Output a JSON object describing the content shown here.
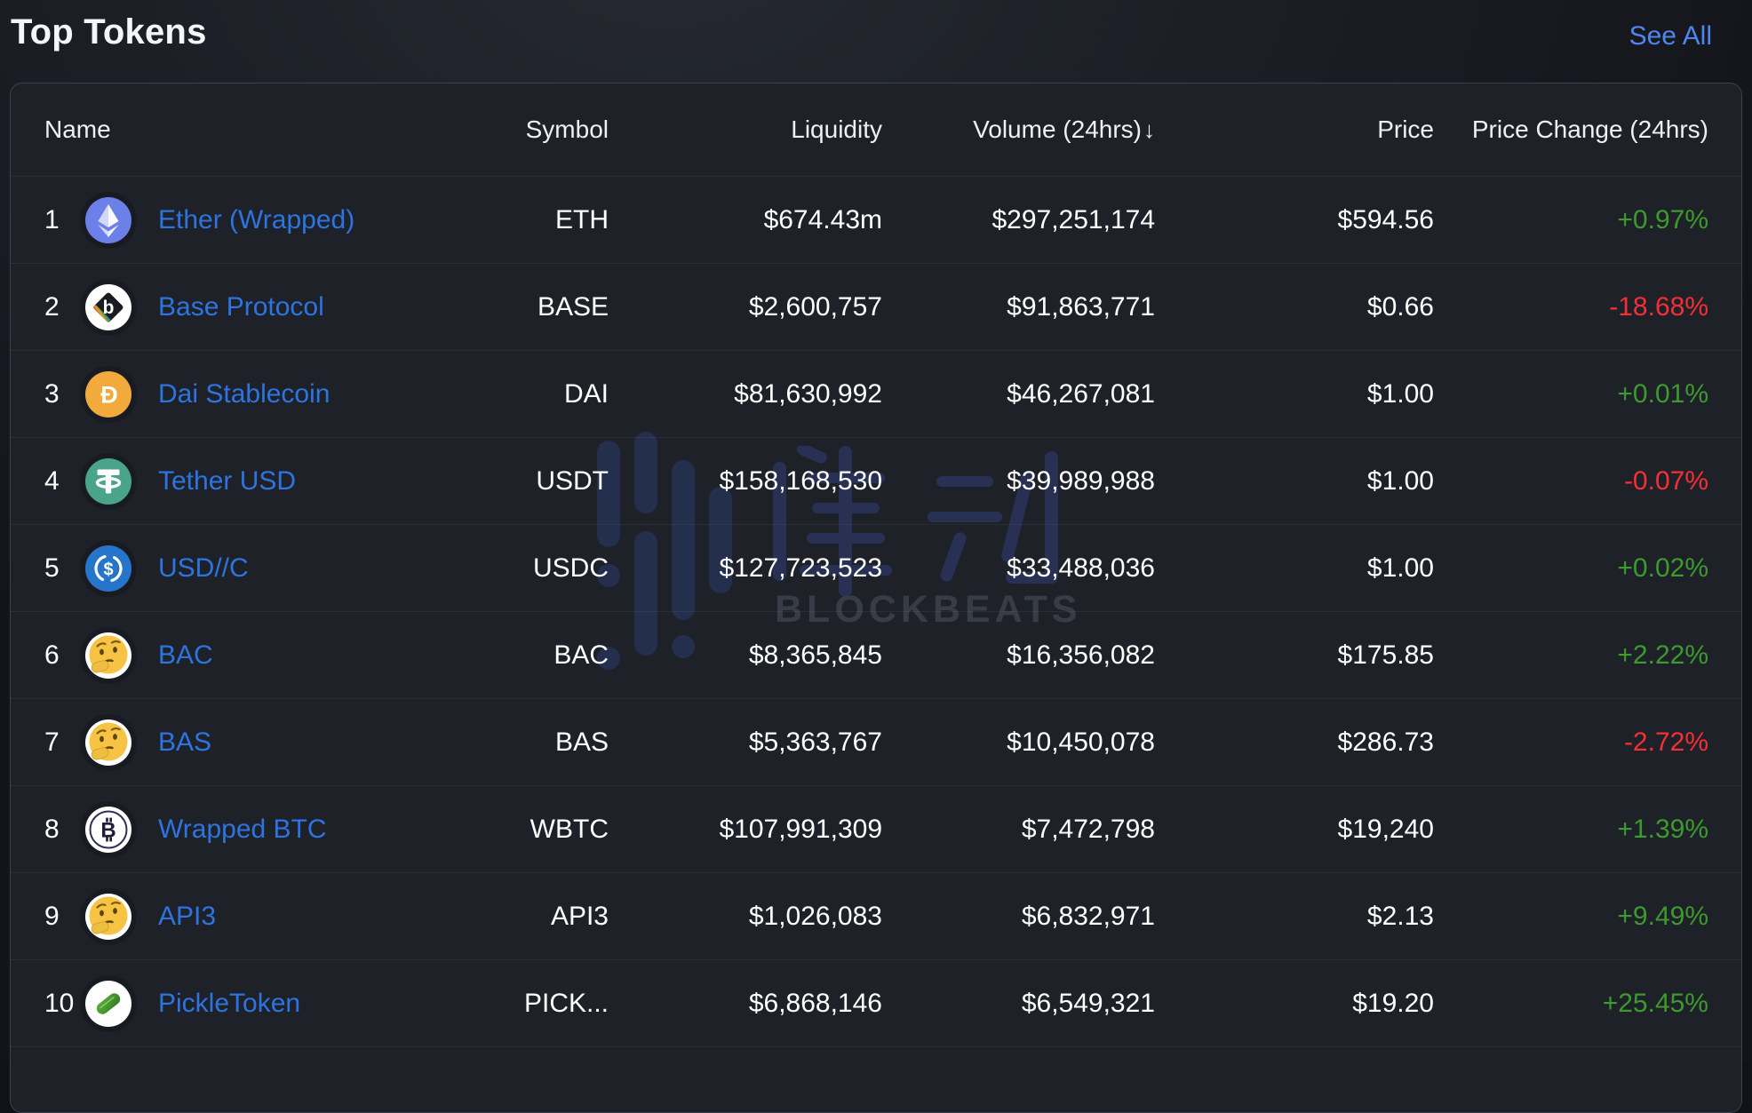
{
  "page": {
    "title": "Top Tokens",
    "see_all": "See All"
  },
  "table": {
    "columns": {
      "name": "Name",
      "symbol": "Symbol",
      "liquidity": "Liquidity",
      "volume": "Volume (24hrs)",
      "volume_sort_icon": "↓",
      "price": "Price",
      "price_change": "Price Change (24hrs)"
    },
    "rows": [
      {
        "rank": "1",
        "icon": "eth",
        "name": "Ether (Wrapped)",
        "symbol": "ETH",
        "liquidity": "$674.43m",
        "volume": "$297,251,174",
        "price": "$594.56",
        "change": "+0.97%"
      },
      {
        "rank": "2",
        "icon": "base",
        "name": "Base Protocol",
        "symbol": "BASE",
        "liquidity": "$2,600,757",
        "volume": "$91,863,771",
        "price": "$0.66",
        "change": "-18.68%"
      },
      {
        "rank": "3",
        "icon": "dai",
        "name": "Dai Stablecoin",
        "symbol": "DAI",
        "liquidity": "$81,630,992",
        "volume": "$46,267,081",
        "price": "$1.00",
        "change": "+0.01%"
      },
      {
        "rank": "4",
        "icon": "usdt",
        "name": "Tether USD",
        "symbol": "USDT",
        "liquidity": "$158,168,530",
        "volume": "$39,989,988",
        "price": "$1.00",
        "change": "-0.07%"
      },
      {
        "rank": "5",
        "icon": "usdc",
        "name": "USD//C",
        "symbol": "USDC",
        "liquidity": "$127,723,523",
        "volume": "$33,488,036",
        "price": "$1.00",
        "change": "+0.02%"
      },
      {
        "rank": "6",
        "icon": "thinking",
        "name": "BAC",
        "symbol": "BAC",
        "liquidity": "$8,365,845",
        "volume": "$16,356,082",
        "price": "$175.85",
        "change": "+2.22%"
      },
      {
        "rank": "7",
        "icon": "thinking",
        "name": "BAS",
        "symbol": "BAS",
        "liquidity": "$5,363,767",
        "volume": "$10,450,078",
        "price": "$286.73",
        "change": "-2.72%"
      },
      {
        "rank": "8",
        "icon": "wbtc",
        "name": "Wrapped BTC",
        "symbol": "WBTC",
        "liquidity": "$107,991,309",
        "volume": "$7,472,798",
        "price": "$19,240",
        "change": "+1.39%"
      },
      {
        "rank": "9",
        "icon": "thinking",
        "name": "API3",
        "symbol": "API3",
        "liquidity": "$1,026,083",
        "volume": "$6,832,971",
        "price": "$2.13",
        "change": "+9.49%"
      },
      {
        "rank": "10",
        "icon": "pickle",
        "name": "PickleToken",
        "symbol": "PICK...",
        "liquidity": "$6,868,146",
        "volume": "$6,549,321",
        "price": "$19.20",
        "change": "+25.45%"
      }
    ]
  },
  "watermark": {
    "cjk": "律动",
    "wordmark": "BLOCKBEATS"
  },
  "colors": {
    "link": "#2d74e0",
    "see_all": "#4d86ef",
    "positive": "#3c9a2e",
    "negative": "#f42f36",
    "card_bg": "#1e2127",
    "card_border": "#3e424c"
  }
}
